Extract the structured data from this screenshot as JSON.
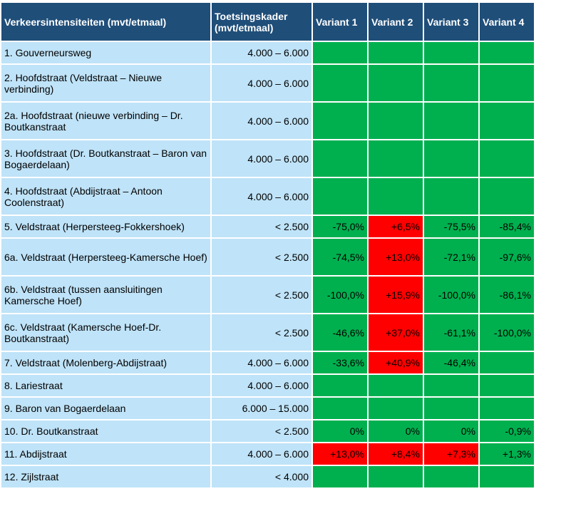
{
  "table": {
    "headers": [
      "Verkeersintensiteiten (mvt/etmaal)",
      "Toetsingskader (mvt/etmaal)",
      "Variant 1",
      "Variant 2",
      "Variant 3",
      "Variant 4"
    ],
    "cell_colors": {
      "header": "#1f4e79",
      "label": "#bfe3f8",
      "green": "#00b04f",
      "red": "#ff0000"
    },
    "rows": [
      {
        "road": "1. Gouverneursweg",
        "norm": "4.000 – 6.000",
        "values": [
          "",
          "",
          "",
          ""
        ],
        "status": [
          "g",
          "g",
          "g",
          "g"
        ]
      },
      {
        "road": "2. Hoofdstraat (Veldstraat – Nieuwe verbinding)",
        "norm": "4.000 – 6.000",
        "values": [
          "",
          "",
          "",
          ""
        ],
        "status": [
          "g",
          "g",
          "g",
          "g"
        ]
      },
      {
        "road": "2a. Hoofdstraat (nieuwe verbinding – Dr. Boutkanstraat",
        "norm": "4.000 – 6.000",
        "values": [
          "",
          "",
          "",
          ""
        ],
        "status": [
          "g",
          "g",
          "g",
          "g"
        ]
      },
      {
        "road": "3. Hoofdstraat (Dr. Boutkanstraat – Baron van Bogaerdelaan)",
        "norm": "4.000 – 6.000",
        "values": [
          "",
          "",
          "",
          ""
        ],
        "status": [
          "g",
          "g",
          "g",
          "g"
        ]
      },
      {
        "road": "4. Hoofdstraat (Abdijstraat – Antoon Coolenstraat)",
        "norm": "4.000 – 6.000",
        "values": [
          "",
          "",
          "",
          ""
        ],
        "status": [
          "g",
          "g",
          "g",
          "g"
        ]
      },
      {
        "road": "5. Veldstraat (Herpersteeg-Fokkershoek)",
        "norm": "< 2.500",
        "values": [
          "-75,0%",
          "+6,5%",
          "-75,5%",
          "-85,4%"
        ],
        "status": [
          "g",
          "r",
          "g",
          "g"
        ]
      },
      {
        "road": "6a. Veldstraat (Herpersteeg-Kamersche Hoef)",
        "norm": "< 2.500",
        "values": [
          "-74,5%",
          "+13,0%",
          "-72,1%",
          "-97,6%"
        ],
        "status": [
          "g",
          "r",
          "g",
          "g"
        ]
      },
      {
        "road": "6b. Veldstraat (tussen aansluitingen Kamersche Hoef)",
        "norm": "< 2.500",
        "values": [
          "-100,0%",
          "+15,9%",
          "-100,0%",
          "-86,1%"
        ],
        "status": [
          "g",
          "r",
          "g",
          "g"
        ]
      },
      {
        "road": "6c. Veldstraat (Kamersche Hoef-Dr. Boutkanstraat)",
        "norm": "< 2.500",
        "values": [
          "-46,6%",
          "+37,0%",
          "-61,1%",
          "-100,0%"
        ],
        "status": [
          "g",
          "r",
          "g",
          "g"
        ]
      },
      {
        "road": "7. Veldstraat (Molenberg-Abdijstraat)",
        "norm": "4.000 – 6.000",
        "values": [
          "-33,6%",
          "+40,9%",
          "-46,4%",
          ""
        ],
        "status": [
          "g",
          "r",
          "g",
          "g"
        ]
      },
      {
        "road": "8. Lariestraat",
        "norm": "4.000 – 6.000",
        "values": [
          "",
          "",
          "",
          ""
        ],
        "status": [
          "g",
          "g",
          "g",
          "g"
        ]
      },
      {
        "road": "9. Baron van Bogaerdelaan",
        "norm": "6.000 – 15.000",
        "values": [
          "",
          "",
          "",
          ""
        ],
        "status": [
          "g",
          "g",
          "g",
          "g"
        ]
      },
      {
        "road": "10. Dr. Boutkanstraat",
        "norm": "< 2.500",
        "values": [
          "0%",
          "0%",
          "0%",
          "-0,9%"
        ],
        "status": [
          "g",
          "g",
          "g",
          "g"
        ]
      },
      {
        "road": "11. Abdijstraat",
        "norm": "4.000 – 6.000",
        "values": [
          "+13,0%",
          "+8,4%",
          "+7,3%",
          "+1,3%"
        ],
        "status": [
          "r",
          "r",
          "r",
          "g"
        ]
      },
      {
        "road": "12. Zijlstraat",
        "norm": "< 4.000",
        "values": [
          "",
          "",
          "",
          ""
        ],
        "status": [
          "g",
          "g",
          "g",
          "g"
        ]
      }
    ]
  }
}
